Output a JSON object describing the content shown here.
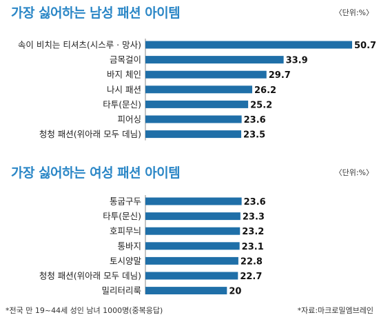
{
  "chart_data": [
    {
      "type": "bar",
      "orientation": "horizontal",
      "title": "가장 싫어하는 남성 패션 아이템",
      "unit": "〈단위:%〉",
      "categories": [
        "속이 비치는 티셔츠(시스루 · 망사)",
        "금목걸이",
        "바지 체인",
        "나시 패션",
        "타투(문신)",
        "피어싱",
        "청청 패션(위아래 모두 데님)"
      ],
      "values": [
        50.7,
        33.9,
        29.7,
        26.2,
        25.2,
        23.6,
        23.5
      ],
      "bar_color": "#1f6fa8",
      "xlim": [
        0,
        50.7
      ]
    },
    {
      "type": "bar",
      "orientation": "horizontal",
      "title": "가장 싫어하는 여성 패션 아이템",
      "unit": "〈단위:%〉",
      "categories": [
        "통굽구두",
        "타투(문신)",
        "호피무늬",
        "통바지",
        "토시양말",
        "청청 패션(위아래 모두 데님)",
        "밀리터리룩"
      ],
      "values": [
        23.6,
        23.3,
        23.2,
        23.1,
        22.8,
        22.7,
        20
      ],
      "bar_color": "#1f6fa8",
      "xlim": [
        0,
        50.7
      ]
    }
  ],
  "footnote_left": "*전국 만 19~44세 성인 남녀 1000명(중복응답)",
  "footnote_right": "*자료:마크로밀엠브레인"
}
